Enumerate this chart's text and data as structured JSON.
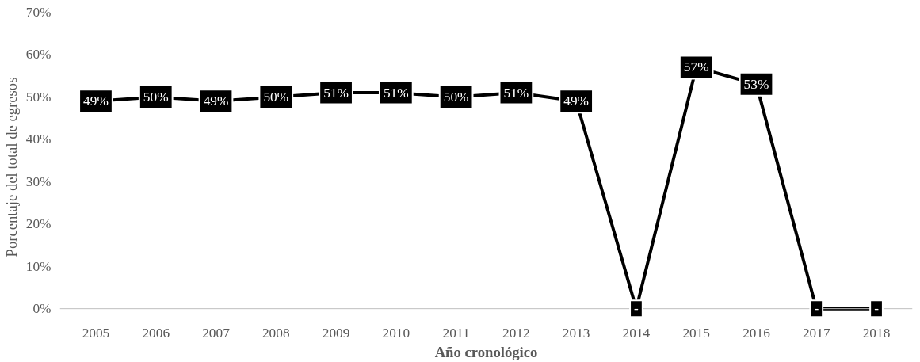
{
  "chart_data": {
    "type": "line",
    "xlabel": "Año cronológico",
    "ylabel": "Porcentaje del total de egresos",
    "categories": [
      "2005",
      "2006",
      "2007",
      "2008",
      "2009",
      "2010",
      "2011",
      "2012",
      "2013",
      "2014",
      "2015",
      "2016",
      "2017",
      "2018"
    ],
    "series": [
      {
        "color": "#000000",
        "values": [
          49,
          50,
          49,
          50,
          51,
          51,
          50,
          51,
          49,
          0,
          57,
          53,
          0,
          0
        ],
        "value_labels": [
          "49%",
          "50%",
          "49%",
          "50%",
          "51%",
          "51%",
          "50%",
          "51%",
          "49%",
          "-",
          "57%",
          "53%",
          "-",
          "-"
        ]
      }
    ],
    "ylim": [
      0,
      70
    ],
    "yticks": [
      {
        "value": 0,
        "label": "0%"
      },
      {
        "value": 10,
        "label": "10%"
      },
      {
        "value": 20,
        "label": "20%"
      },
      {
        "value": 30,
        "label": "30%"
      },
      {
        "value": 40,
        "label": "40%"
      },
      {
        "value": 50,
        "label": "50%"
      },
      {
        "value": 60,
        "label": "60%"
      },
      {
        "value": 70,
        "label": "70%"
      }
    ],
    "grid": false,
    "marker": "square",
    "line_style": "solid"
  }
}
